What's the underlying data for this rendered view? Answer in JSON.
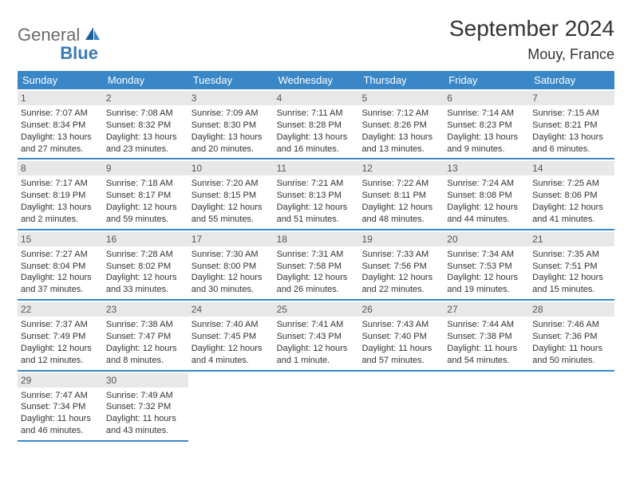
{
  "logo": {
    "part1": "General",
    "part2": "Blue"
  },
  "title": "September 2024",
  "location": "Mouy, France",
  "colors": {
    "header_bg": "#3a87c7",
    "header_text": "#ffffff",
    "daynum_bg": "#e8e8e8",
    "daynum_text": "#555555",
    "body_text": "#333333",
    "cell_border": "#3a87c7",
    "logo_gray": "#6b6b6b",
    "logo_blue": "#3a7ab8"
  },
  "weekdays": [
    "Sunday",
    "Monday",
    "Tuesday",
    "Wednesday",
    "Thursday",
    "Friday",
    "Saturday"
  ],
  "weeks": [
    [
      {
        "day": "1",
        "sunrise": "Sunrise: 7:07 AM",
        "sunset": "Sunset: 8:34 PM",
        "dl1": "Daylight: 13 hours",
        "dl2": "and 27 minutes."
      },
      {
        "day": "2",
        "sunrise": "Sunrise: 7:08 AM",
        "sunset": "Sunset: 8:32 PM",
        "dl1": "Daylight: 13 hours",
        "dl2": "and 23 minutes."
      },
      {
        "day": "3",
        "sunrise": "Sunrise: 7:09 AM",
        "sunset": "Sunset: 8:30 PM",
        "dl1": "Daylight: 13 hours",
        "dl2": "and 20 minutes."
      },
      {
        "day": "4",
        "sunrise": "Sunrise: 7:11 AM",
        "sunset": "Sunset: 8:28 PM",
        "dl1": "Daylight: 13 hours",
        "dl2": "and 16 minutes."
      },
      {
        "day": "5",
        "sunrise": "Sunrise: 7:12 AM",
        "sunset": "Sunset: 8:26 PM",
        "dl1": "Daylight: 13 hours",
        "dl2": "and 13 minutes."
      },
      {
        "day": "6",
        "sunrise": "Sunrise: 7:14 AM",
        "sunset": "Sunset: 8:23 PM",
        "dl1": "Daylight: 13 hours",
        "dl2": "and 9 minutes."
      },
      {
        "day": "7",
        "sunrise": "Sunrise: 7:15 AM",
        "sunset": "Sunset: 8:21 PM",
        "dl1": "Daylight: 13 hours",
        "dl2": "and 6 minutes."
      }
    ],
    [
      {
        "day": "8",
        "sunrise": "Sunrise: 7:17 AM",
        "sunset": "Sunset: 8:19 PM",
        "dl1": "Daylight: 13 hours",
        "dl2": "and 2 minutes."
      },
      {
        "day": "9",
        "sunrise": "Sunrise: 7:18 AM",
        "sunset": "Sunset: 8:17 PM",
        "dl1": "Daylight: 12 hours",
        "dl2": "and 59 minutes."
      },
      {
        "day": "10",
        "sunrise": "Sunrise: 7:20 AM",
        "sunset": "Sunset: 8:15 PM",
        "dl1": "Daylight: 12 hours",
        "dl2": "and 55 minutes."
      },
      {
        "day": "11",
        "sunrise": "Sunrise: 7:21 AM",
        "sunset": "Sunset: 8:13 PM",
        "dl1": "Daylight: 12 hours",
        "dl2": "and 51 minutes."
      },
      {
        "day": "12",
        "sunrise": "Sunrise: 7:22 AM",
        "sunset": "Sunset: 8:11 PM",
        "dl1": "Daylight: 12 hours",
        "dl2": "and 48 minutes."
      },
      {
        "day": "13",
        "sunrise": "Sunrise: 7:24 AM",
        "sunset": "Sunset: 8:08 PM",
        "dl1": "Daylight: 12 hours",
        "dl2": "and 44 minutes."
      },
      {
        "day": "14",
        "sunrise": "Sunrise: 7:25 AM",
        "sunset": "Sunset: 8:06 PM",
        "dl1": "Daylight: 12 hours",
        "dl2": "and 41 minutes."
      }
    ],
    [
      {
        "day": "15",
        "sunrise": "Sunrise: 7:27 AM",
        "sunset": "Sunset: 8:04 PM",
        "dl1": "Daylight: 12 hours",
        "dl2": "and 37 minutes."
      },
      {
        "day": "16",
        "sunrise": "Sunrise: 7:28 AM",
        "sunset": "Sunset: 8:02 PM",
        "dl1": "Daylight: 12 hours",
        "dl2": "and 33 minutes."
      },
      {
        "day": "17",
        "sunrise": "Sunrise: 7:30 AM",
        "sunset": "Sunset: 8:00 PM",
        "dl1": "Daylight: 12 hours",
        "dl2": "and 30 minutes."
      },
      {
        "day": "18",
        "sunrise": "Sunrise: 7:31 AM",
        "sunset": "Sunset: 7:58 PM",
        "dl1": "Daylight: 12 hours",
        "dl2": "and 26 minutes."
      },
      {
        "day": "19",
        "sunrise": "Sunrise: 7:33 AM",
        "sunset": "Sunset: 7:56 PM",
        "dl1": "Daylight: 12 hours",
        "dl2": "and 22 minutes."
      },
      {
        "day": "20",
        "sunrise": "Sunrise: 7:34 AM",
        "sunset": "Sunset: 7:53 PM",
        "dl1": "Daylight: 12 hours",
        "dl2": "and 19 minutes."
      },
      {
        "day": "21",
        "sunrise": "Sunrise: 7:35 AM",
        "sunset": "Sunset: 7:51 PM",
        "dl1": "Daylight: 12 hours",
        "dl2": "and 15 minutes."
      }
    ],
    [
      {
        "day": "22",
        "sunrise": "Sunrise: 7:37 AM",
        "sunset": "Sunset: 7:49 PM",
        "dl1": "Daylight: 12 hours",
        "dl2": "and 12 minutes."
      },
      {
        "day": "23",
        "sunrise": "Sunrise: 7:38 AM",
        "sunset": "Sunset: 7:47 PM",
        "dl1": "Daylight: 12 hours",
        "dl2": "and 8 minutes."
      },
      {
        "day": "24",
        "sunrise": "Sunrise: 7:40 AM",
        "sunset": "Sunset: 7:45 PM",
        "dl1": "Daylight: 12 hours",
        "dl2": "and 4 minutes."
      },
      {
        "day": "25",
        "sunrise": "Sunrise: 7:41 AM",
        "sunset": "Sunset: 7:43 PM",
        "dl1": "Daylight: 12 hours",
        "dl2": "and 1 minute."
      },
      {
        "day": "26",
        "sunrise": "Sunrise: 7:43 AM",
        "sunset": "Sunset: 7:40 PM",
        "dl1": "Daylight: 11 hours",
        "dl2": "and 57 minutes."
      },
      {
        "day": "27",
        "sunrise": "Sunrise: 7:44 AM",
        "sunset": "Sunset: 7:38 PM",
        "dl1": "Daylight: 11 hours",
        "dl2": "and 54 minutes."
      },
      {
        "day": "28",
        "sunrise": "Sunrise: 7:46 AM",
        "sunset": "Sunset: 7:36 PM",
        "dl1": "Daylight: 11 hours",
        "dl2": "and 50 minutes."
      }
    ],
    [
      {
        "day": "29",
        "sunrise": "Sunrise: 7:47 AM",
        "sunset": "Sunset: 7:34 PM",
        "dl1": "Daylight: 11 hours",
        "dl2": "and 46 minutes."
      },
      {
        "day": "30",
        "sunrise": "Sunrise: 7:49 AM",
        "sunset": "Sunset: 7:32 PM",
        "dl1": "Daylight: 11 hours",
        "dl2": "and 43 minutes."
      },
      null,
      null,
      null,
      null,
      null
    ]
  ]
}
